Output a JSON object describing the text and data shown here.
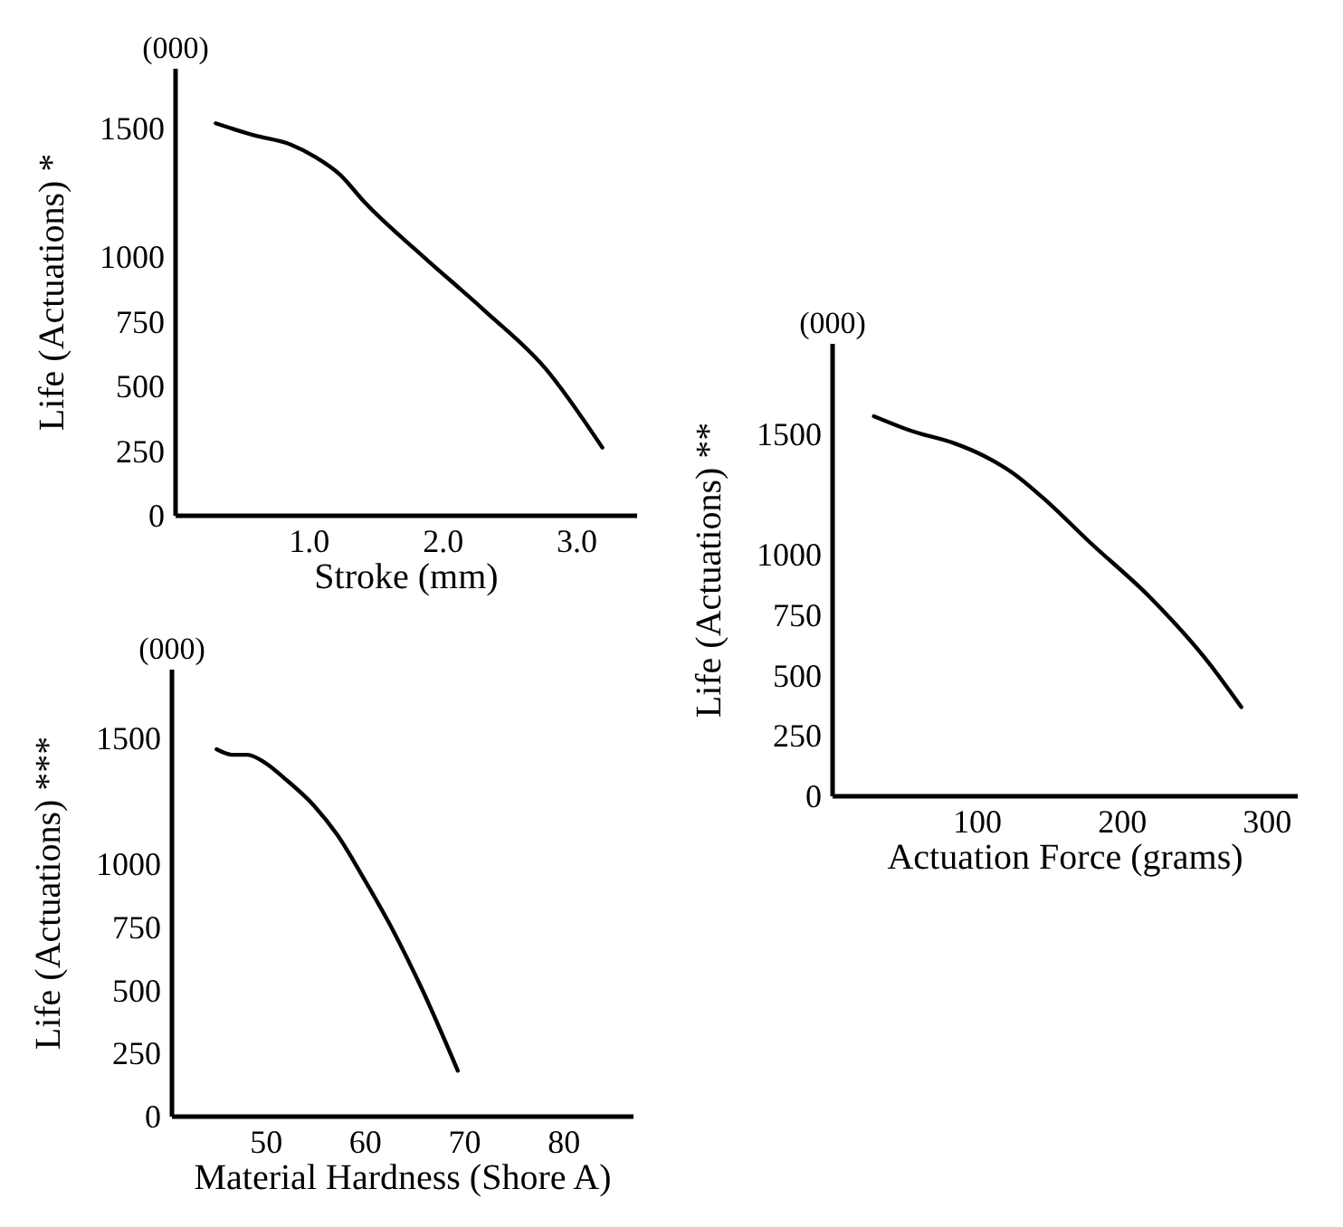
{
  "chart_data": [
    {
      "type": "line",
      "xlabel": "Stroke (mm)",
      "ylabel": "Life (Actuations) *",
      "annotations": [
        "(000)"
      ],
      "x": [
        0.3,
        0.59,
        0.86,
        1.04,
        1.23,
        1.41,
        1.85,
        2.31,
        2.76,
        3.19
      ],
      "series": [
        {
          "color": "#000000",
          "values": [
            1519,
            1472,
            1437,
            1390,
            1320,
            1215,
            1004,
            794,
            573,
            264
          ]
        }
      ],
      "xlim": [
        0,
        3.45
      ],
      "xticks": [
        {
          "value": 1,
          "label": "1.0"
        },
        {
          "value": 2,
          "label": "2.0"
        },
        {
          "value": 3,
          "label": "3.0"
        }
      ],
      "ylim": [
        0,
        1730
      ],
      "yticks": [
        0,
        250,
        500,
        750,
        1000,
        1500
      ],
      "line_style": "solid"
    },
    {
      "type": "line",
      "xlabel": "Actuation Force (grams)",
      "ylabel": "Life (Actuations) **",
      "annotations": [
        "(000)"
      ],
      "x": [
        28.5,
        55,
        84,
        104,
        125,
        145,
        178,
        219,
        260,
        282
      ],
      "series": [
        {
          "color": "#000000",
          "values": [
            1575,
            1513,
            1463,
            1412,
            1337,
            1238,
            1050,
            825,
            550,
            370
          ]
        }
      ],
      "xlim": [
        0,
        321
      ],
      "xticks": [
        100,
        200,
        300
      ],
      "ylim": [
        0,
        1875
      ],
      "yticks": [
        0,
        250,
        500,
        750,
        1000,
        1500
      ],
      "line_style": "solid"
    },
    {
      "type": "line",
      "xlabel": "Material Hardness (Shore A)",
      "ylabel": "Life (Actuations) ***",
      "annotations": [
        "(000)"
      ],
      "x": [
        45.0,
        46.6,
        48.1,
        49.9,
        51.8,
        54.8,
        57.2,
        59.6,
        62.7,
        65.7,
        69.3
      ],
      "series": [
        {
          "color": "#000000",
          "values": [
            1457,
            1435,
            1435,
            1403,
            1343,
            1234,
            1115,
            960,
            744,
            505,
            182
          ]
        }
      ],
      "xlim": [
        40.5,
        87
      ],
      "xticks": [
        50,
        60,
        70,
        80
      ],
      "ylim": [
        0,
        1773
      ],
      "yticks": [
        0,
        250,
        500,
        750,
        1000,
        1500
      ],
      "line_style": "solid"
    }
  ]
}
